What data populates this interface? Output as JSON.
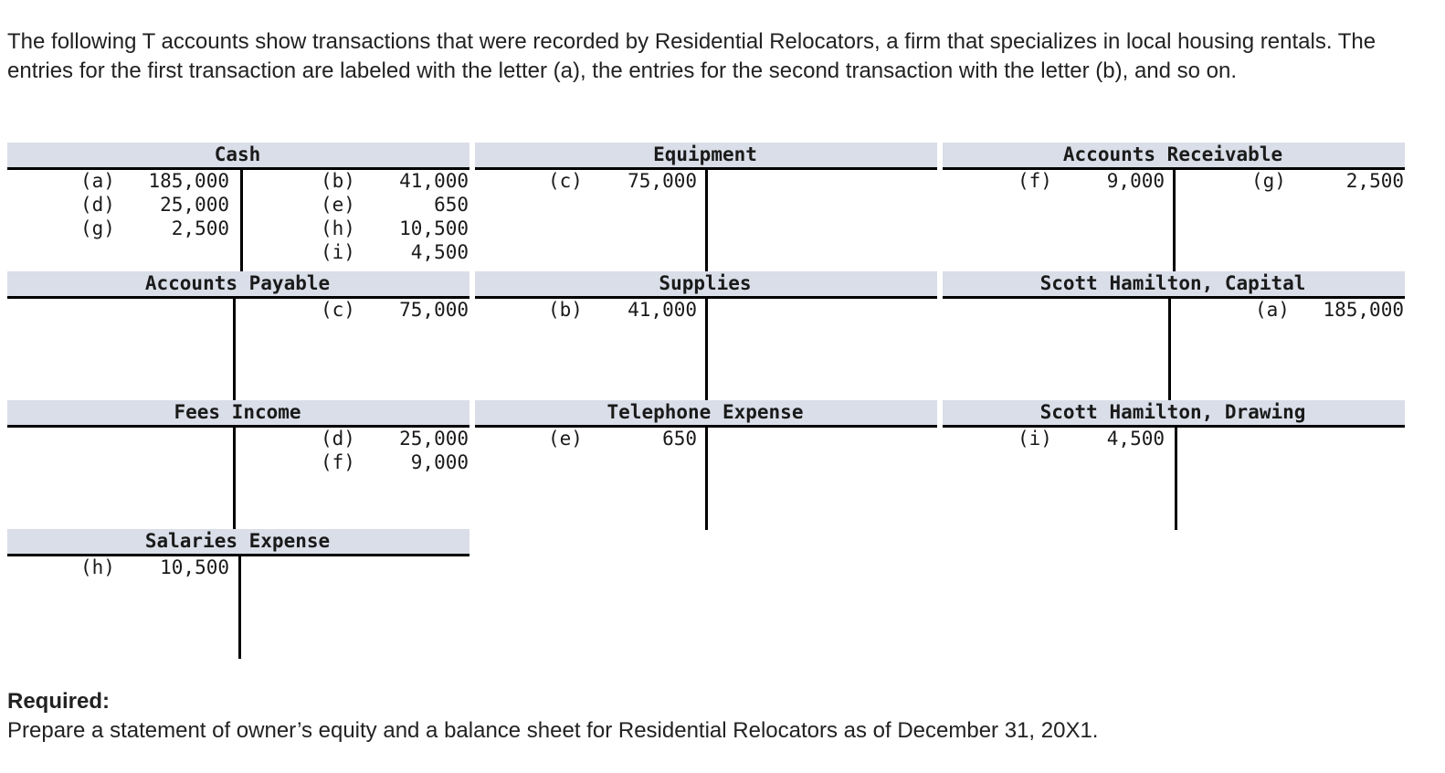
{
  "intro": "The following T accounts show transactions that were recorded by Residential Relocators, a firm that specializes in local housing rentals. The entries for the first transaction are labeled with the letter (a), the entries for the second transaction with the letter (b), and so on.",
  "accounts": {
    "cash": {
      "name": "Cash",
      "debits": [
        {
          "ref": "(a)",
          "amount": "185,000"
        },
        {
          "ref": "(d)",
          "amount": "25,000"
        },
        {
          "ref": "(g)",
          "amount": "2,500"
        }
      ],
      "credits": [
        {
          "ref": "(b)",
          "amount": "41,000"
        },
        {
          "ref": "(e)",
          "amount": "650"
        },
        {
          "ref": "(h)",
          "amount": "10,500"
        },
        {
          "ref": "(i)",
          "amount": "4,500"
        }
      ]
    },
    "equipment": {
      "name": "Equipment",
      "debits": [
        {
          "ref": "(c)",
          "amount": "75,000"
        }
      ],
      "credits": []
    },
    "accounts_receivable": {
      "name": "Accounts Receivable",
      "debits": [
        {
          "ref": "(f)",
          "amount": "9,000"
        }
      ],
      "credits": [
        {
          "ref": "(g)",
          "amount": "2,500"
        }
      ]
    },
    "accounts_payable": {
      "name": "Accounts Payable",
      "debits": [],
      "credits": [
        {
          "ref": "(c)",
          "amount": "75,000"
        }
      ]
    },
    "supplies": {
      "name": "Supplies",
      "debits": [
        {
          "ref": "(b)",
          "amount": "41,000"
        }
      ],
      "credits": []
    },
    "capital": {
      "name": "Scott Hamilton, Capital",
      "debits": [],
      "credits": [
        {
          "ref": "(a)",
          "amount": "185,000"
        }
      ]
    },
    "fees_income": {
      "name": "Fees Income",
      "debits": [],
      "credits": [
        {
          "ref": "(d)",
          "amount": "25,000"
        },
        {
          "ref": "(f)",
          "amount": "9,000"
        }
      ]
    },
    "telephone_expense": {
      "name": "Telephone Expense",
      "debits": [
        {
          "ref": "(e)",
          "amount": "650"
        }
      ],
      "credits": []
    },
    "drawing": {
      "name": "Scott Hamilton, Drawing",
      "debits": [
        {
          "ref": "(i)",
          "amount": "4,500"
        }
      ],
      "credits": []
    },
    "salaries_expense": {
      "name": "Salaries Expense",
      "debits": [
        {
          "ref": "(h)",
          "amount": "10,500"
        }
      ],
      "credits": []
    }
  },
  "required": {
    "label": "Required:",
    "text": "Prepare a statement of owner’s equity and a balance sheet for Residential Relocators as of December 31, 20X1."
  }
}
